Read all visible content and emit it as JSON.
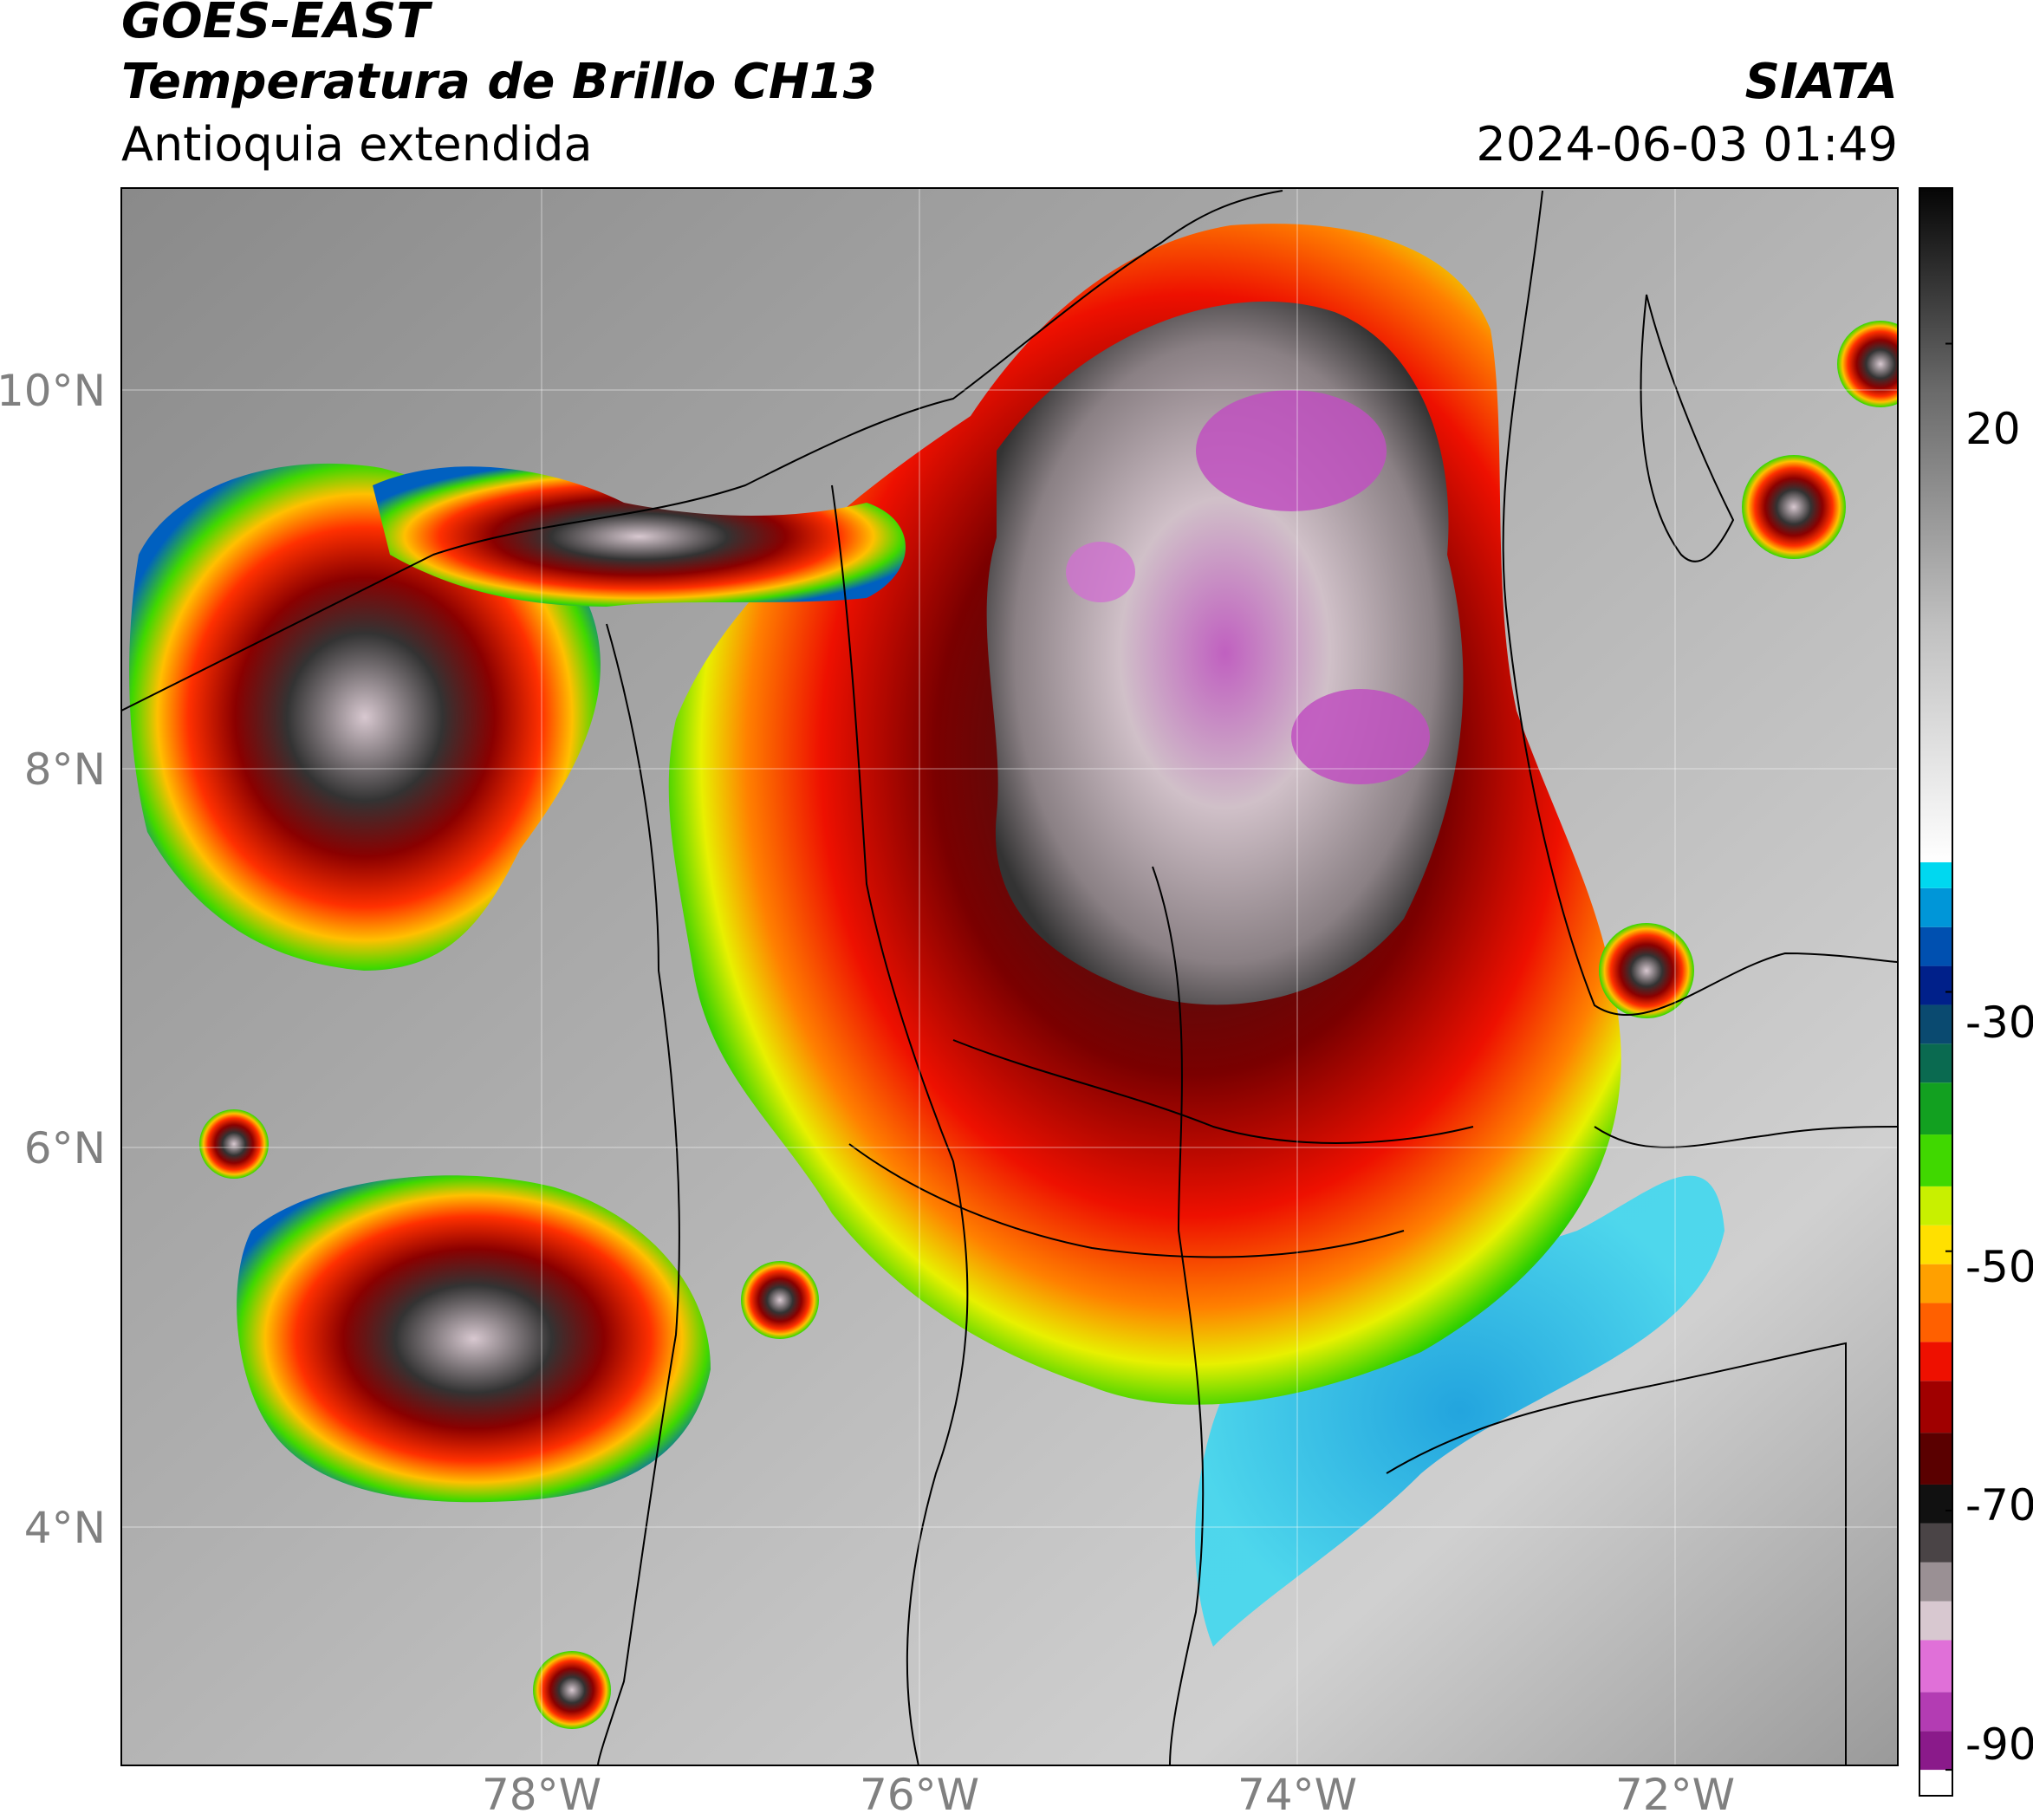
{
  "header": {
    "satellite": "GOES-EAST",
    "product": "Temperatura de Brillo CH13",
    "region": "Antioquia extendida",
    "agency": "SIATA",
    "datetime": "2024-06-03 01:49"
  },
  "map": {
    "lat_labels": [
      "10°N",
      "8°N",
      "6°N",
      "4°N"
    ],
    "lon_labels": [
      "78°W",
      "76°W",
      "74°W",
      "72°W"
    ],
    "lat_range": [
      2.5,
      10.8
    ],
    "lon_range": [
      -80.0,
      -70.9
    ]
  },
  "colorbar": {
    "ticks": [
      "20",
      "-30",
      "-50",
      "-70",
      "-90"
    ],
    "range": [
      -92,
      32
    ],
    "segments": [
      {
        "from": -92,
        "to": -90,
        "color": "#ffffff"
      },
      {
        "from": -90,
        "to": -87,
        "color": "#8a1a8a"
      },
      {
        "from": -87,
        "to": -84,
        "color": "#b33cb3"
      },
      {
        "from": -84,
        "to": -80,
        "color": "#e070d8"
      },
      {
        "from": -80,
        "to": -77,
        "color": "#d8c8d0"
      },
      {
        "from": -77,
        "to": -74,
        "color": "#9a9094"
      },
      {
        "from": -74,
        "to": -71,
        "color": "#4a4446"
      },
      {
        "from": -71,
        "to": -68,
        "color": "#111111"
      },
      {
        "from": -68,
        "to": -64,
        "color": "#5a0000"
      },
      {
        "from": -64,
        "to": -60,
        "color": "#a00000"
      },
      {
        "from": -60,
        "to": -57,
        "color": "#ee1000"
      },
      {
        "from": -57,
        "to": -54,
        "color": "#ff6000"
      },
      {
        "from": -54,
        "to": -51,
        "color": "#ffa000"
      },
      {
        "from": -51,
        "to": -48,
        "color": "#ffe000"
      },
      {
        "from": -48,
        "to": -45,
        "color": "#c8f000"
      },
      {
        "from": -45,
        "to": -41,
        "color": "#40d800"
      },
      {
        "from": -41,
        "to": -37,
        "color": "#12a020"
      },
      {
        "from": -37,
        "to": -34,
        "color": "#0a6a50"
      },
      {
        "from": -34,
        "to": -31,
        "color": "#0a4a70"
      },
      {
        "from": -31,
        "to": -28,
        "color": "#00208a"
      },
      {
        "from": -28,
        "to": -25,
        "color": "#0050b0"
      },
      {
        "from": -25,
        "to": -22,
        "color": "#0096d8"
      },
      {
        "from": -22,
        "to": -20,
        "color": "#00d8f0"
      },
      {
        "from": -20,
        "to": 32,
        "color": "gray-ramp"
      }
    ]
  }
}
